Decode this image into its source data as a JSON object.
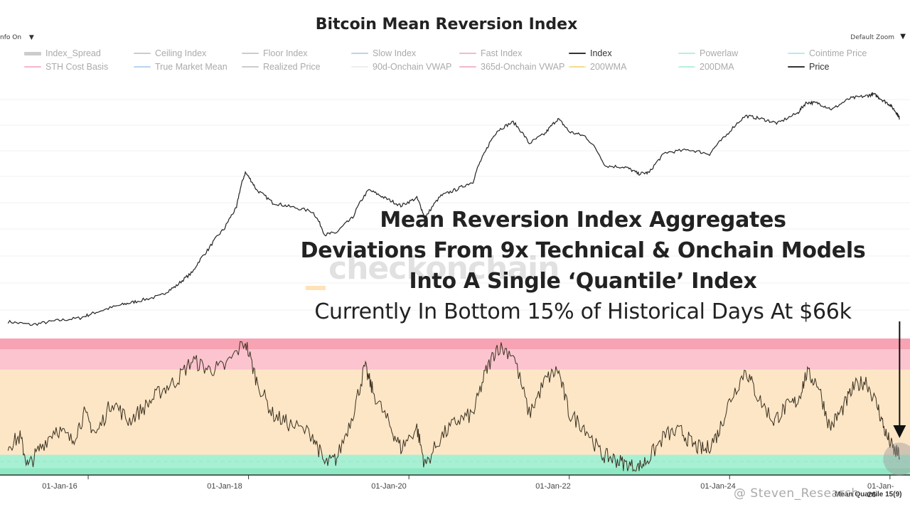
{
  "header": {
    "title": "Bitcoin Mean Reversion Index",
    "info_toggle": "nfo On",
    "info_caret": "▼",
    "zoom_label": "Default Zoom",
    "zoom_caret": "▼"
  },
  "legend": {
    "items": [
      {
        "label": "Index_Spread",
        "color": "#cccccc",
        "style": "thick",
        "active": false
      },
      {
        "label": "Ceiling Index",
        "color": "#cccccc",
        "style": "solid",
        "active": false
      },
      {
        "label": "Floor Index",
        "color": "#cccccc",
        "style": "solid",
        "active": false
      },
      {
        "label": "Slow Index",
        "color": "#b8d4f0",
        "style": "solid",
        "active": false
      },
      {
        "label": "Fast Index",
        "color": "#f5b8c8",
        "style": "solid",
        "active": false
      },
      {
        "label": "Index",
        "color": "#333333",
        "style": "solid",
        "active": true
      },
      {
        "label": "Powerlaw",
        "color": "#b8efd9",
        "style": "solid",
        "active": false
      },
      {
        "label": "Cointime Price",
        "color": "#b8eaf0",
        "style": "solid",
        "active": false
      },
      {
        "label": "STH Cost Basis",
        "color": "#f5b8c8",
        "style": "solid",
        "active": false
      },
      {
        "label": "True Market Mean",
        "color": "#b8d4f0",
        "style": "solid",
        "active": false
      },
      {
        "label": "Realized Price",
        "color": "#cccccc",
        "style": "solid",
        "active": false
      },
      {
        "label": "90d-Onchain VWAP",
        "color": "#eeeeee",
        "style": "solid",
        "active": false
      },
      {
        "label": "365d-Onchain VWAP",
        "color": "#f5b8c8",
        "style": "solid",
        "active": false
      },
      {
        "label": "200WMA",
        "color": "#f5dc8a",
        "style": "dashed",
        "active": false
      },
      {
        "label": "200DMA",
        "color": "#b8efd9",
        "style": "dashed",
        "active": false
      },
      {
        "label": "Price",
        "color": "#333333",
        "style": "solid",
        "active": true
      }
    ]
  },
  "annotation": {
    "line1": "Mean Reversion Index Aggregates",
    "line2": "Deviations From 9x Technical & Onchain Models",
    "line3": "Into A Single ‘Quantile’ Index",
    "line4": "Currently In Bottom 15% of Historical Days At $66k"
  },
  "watermark": "checkonchain",
  "credit": "@ Steven_Research",
  "lower_panel_label": "Mean Quantile 15(9)",
  "colors": {
    "price_line": "#222222",
    "index_line": "#3a3020",
    "band_red": "#f7a3b3",
    "band_pink": "#fbc4cf",
    "band_orange": "#fde6c6",
    "band_green": "#a8f0d4",
    "band_green_dark": "#8ee8c3",
    "arrow": "#111111",
    "marker": "#999999"
  },
  "chart_data": [
    {
      "type": "line",
      "name": "Price",
      "x_ticks": [
        "01-Jan-16",
        "01-Jan-18",
        "01-Jan-20",
        "01-Jan-22",
        "01-Jan-24",
        "01-Jan-26"
      ],
      "x_domain": [
        2014.9,
        2026.25
      ],
      "scale": "log",
      "points": [
        [
          2015.0,
          410
        ],
        [
          2015.3,
          380
        ],
        [
          2015.6,
          420
        ],
        [
          2015.9,
          450
        ],
        [
          2016.1,
          520
        ],
        [
          2016.4,
          620
        ],
        [
          2016.6,
          680
        ],
        [
          2016.9,
          780
        ],
        [
          2017.1,
          1000
        ],
        [
          2017.3,
          1400
        ],
        [
          2017.5,
          2500
        ],
        [
          2017.7,
          4200
        ],
        [
          2017.85,
          7000
        ],
        [
          2017.96,
          17000
        ],
        [
          2018.1,
          11000
        ],
        [
          2018.3,
          8000
        ],
        [
          2018.5,
          7300
        ],
        [
          2018.8,
          6400
        ],
        [
          2018.95,
          3600
        ],
        [
          2019.1,
          3800
        ],
        [
          2019.3,
          5500
        ],
        [
          2019.5,
          11000
        ],
        [
          2019.7,
          9000
        ],
        [
          2019.9,
          7400
        ],
        [
          2020.1,
          9000
        ],
        [
          2020.2,
          5300
        ],
        [
          2020.4,
          9500
        ],
        [
          2020.6,
          11200
        ],
        [
          2020.8,
          13500
        ],
        [
          2020.95,
          28000
        ],
        [
          2021.1,
          48000
        ],
        [
          2021.3,
          60000
        ],
        [
          2021.5,
          35000
        ],
        [
          2021.7,
          45000
        ],
        [
          2021.86,
          65000
        ],
        [
          2022.0,
          47000
        ],
        [
          2022.2,
          42000
        ],
        [
          2022.45,
          20000
        ],
        [
          2022.7,
          19500
        ],
        [
          2022.86,
          16500
        ],
        [
          2023.0,
          17000
        ],
        [
          2023.2,
          28000
        ],
        [
          2023.5,
          30000
        ],
        [
          2023.75,
          27000
        ],
        [
          2023.95,
          42000
        ],
        [
          2024.2,
          70000
        ],
        [
          2024.4,
          65000
        ],
        [
          2024.6,
          58000
        ],
        [
          2024.85,
          75000
        ],
        [
          2024.96,
          98000
        ],
        [
          2025.1,
          96000
        ],
        [
          2025.28,
          82000
        ],
        [
          2025.5,
          108000
        ],
        [
          2025.7,
          115000
        ],
        [
          2025.8,
          120000
        ],
        [
          2025.9,
          105000
        ],
        [
          2026.0,
          92000
        ],
        [
          2026.08,
          76000
        ],
        [
          2026.12,
          66000
        ]
      ]
    },
    {
      "type": "line",
      "name": "Mean Quantile",
      "ylim": [
        0,
        1
      ],
      "x_domain": [
        2014.9,
        2026.25
      ],
      "bands": [
        {
          "from": 0.05,
          "to": 0.15,
          "color": "#a8f0d4"
        },
        {
          "from": 0.15,
          "to": 0.78,
          "color": "#fde6c6"
        },
        {
          "from": 0.78,
          "to": 0.93,
          "color": "#fbc4cf"
        },
        {
          "from": 0.93,
          "to": 1.05,
          "color": "#f7a3b3"
        }
      ],
      "points": [
        [
          2015.0,
          0.22
        ],
        [
          2015.15,
          0.28
        ],
        [
          2015.25,
          0.06
        ],
        [
          2015.4,
          0.2
        ],
        [
          2015.6,
          0.35
        ],
        [
          2015.8,
          0.25
        ],
        [
          2015.95,
          0.45
        ],
        [
          2016.1,
          0.3
        ],
        [
          2016.3,
          0.55
        ],
        [
          2016.5,
          0.4
        ],
        [
          2016.7,
          0.5
        ],
        [
          2016.9,
          0.62
        ],
        [
          2017.1,
          0.7
        ],
        [
          2017.3,
          0.85
        ],
        [
          2017.5,
          0.78
        ],
        [
          2017.7,
          0.8
        ],
        [
          2017.96,
          0.99
        ],
        [
          2018.1,
          0.7
        ],
        [
          2018.3,
          0.45
        ],
        [
          2018.5,
          0.38
        ],
        [
          2018.8,
          0.3
        ],
        [
          2018.95,
          0.08
        ],
        [
          2019.1,
          0.12
        ],
        [
          2019.3,
          0.45
        ],
        [
          2019.45,
          0.8
        ],
        [
          2019.55,
          0.62
        ],
        [
          2019.75,
          0.38
        ],
        [
          2019.9,
          0.2
        ],
        [
          2020.1,
          0.35
        ],
        [
          2020.2,
          0.07
        ],
        [
          2020.4,
          0.28
        ],
        [
          2020.6,
          0.4
        ],
        [
          2020.8,
          0.45
        ],
        [
          2020.95,
          0.75
        ],
        [
          2021.1,
          0.95
        ],
        [
          2021.3,
          0.9
        ],
        [
          2021.5,
          0.45
        ],
        [
          2021.7,
          0.7
        ],
        [
          2021.86,
          0.78
        ],
        [
          2022.0,
          0.45
        ],
        [
          2022.2,
          0.35
        ],
        [
          2022.4,
          0.15
        ],
        [
          2022.55,
          0.12
        ],
        [
          2022.7,
          0.08
        ],
        [
          2022.86,
          0.05
        ],
        [
          2023.0,
          0.13
        ],
        [
          2023.2,
          0.3
        ],
        [
          2023.4,
          0.32
        ],
        [
          2023.55,
          0.22
        ],
        [
          2023.7,
          0.18
        ],
        [
          2023.85,
          0.3
        ],
        [
          2024.0,
          0.55
        ],
        [
          2024.2,
          0.78
        ],
        [
          2024.35,
          0.58
        ],
        [
          2024.55,
          0.4
        ],
        [
          2024.7,
          0.5
        ],
        [
          2024.85,
          0.55
        ],
        [
          2024.96,
          0.75
        ],
        [
          2025.1,
          0.68
        ],
        [
          2025.25,
          0.35
        ],
        [
          2025.4,
          0.48
        ],
        [
          2025.55,
          0.65
        ],
        [
          2025.7,
          0.7
        ],
        [
          2025.85,
          0.5
        ],
        [
          2025.95,
          0.3
        ],
        [
          2026.05,
          0.18
        ],
        [
          2026.12,
          0.15
        ]
      ]
    }
  ]
}
